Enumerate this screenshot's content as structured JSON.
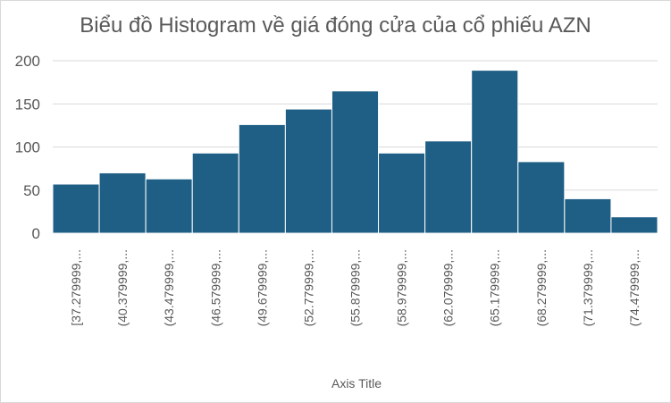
{
  "chart_data": {
    "type": "bar",
    "title": "Biểu đồ Histogram về giá đóng cửa của cổ phiếu AZN",
    "xlabel": "Axis Title",
    "ylabel": "",
    "ylim": [
      0,
      200
    ],
    "yticks": [
      0,
      50,
      100,
      150,
      200
    ],
    "grid": true,
    "categories": [
      "[37.279999,...",
      "(40.379999,...",
      "(43.479999,...",
      "(46.579999,...",
      "(49.679999,...",
      "(52.779999,...",
      "(55.879999,...",
      "(58.979999,...",
      "(62.079999,...",
      "(65.179999,...",
      "(68.279999,...",
      "(71.379999,...",
      "(74.479999,..."
    ],
    "values": [
      57,
      70,
      63,
      93,
      126,
      144,
      165,
      93,
      107,
      189,
      83,
      40,
      19
    ],
    "bar_color": "#1f5f85",
    "gridline_color": "#d9d9d9",
    "text_color": "#595959"
  }
}
